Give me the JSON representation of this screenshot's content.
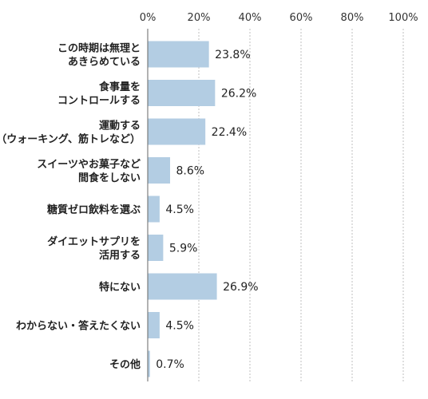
{
  "chart_data": {
    "type": "bar",
    "orientation": "horizontal",
    "title": "",
    "xlabel": "",
    "ylabel": "",
    "xlim": [
      0,
      100
    ],
    "x_ticks": [
      "0%",
      "20%",
      "40%",
      "60%",
      "80%",
      "100%"
    ],
    "x_axis_position": "top",
    "grid": "vertical dashed",
    "bar_color": "#b3cde3",
    "categories": [
      [
        "この時期は無理と",
        "あきらめている"
      ],
      [
        "食事量を",
        "コントロールする"
      ],
      [
        "運動する",
        "（ウォーキング、筋トレなど）"
      ],
      [
        "スイーツやお菓子など",
        "間食をしない"
      ],
      [
        "糖質ゼロ飲料を選ぶ"
      ],
      [
        "ダイエットサプリを",
        "活用する"
      ],
      [
        "特にない"
      ],
      [
        "わからない・答えたくない"
      ],
      [
        "その他"
      ]
    ],
    "values": [
      23.8,
      26.2,
      22.4,
      8.6,
      4.5,
      5.9,
      26.9,
      4.5,
      0.7
    ],
    "value_labels": [
      "23.8%",
      "26.2%",
      "22.4%",
      "8.6%",
      "4.5%",
      "5.9%",
      "26.9%",
      "4.5%",
      "0.7%"
    ]
  }
}
